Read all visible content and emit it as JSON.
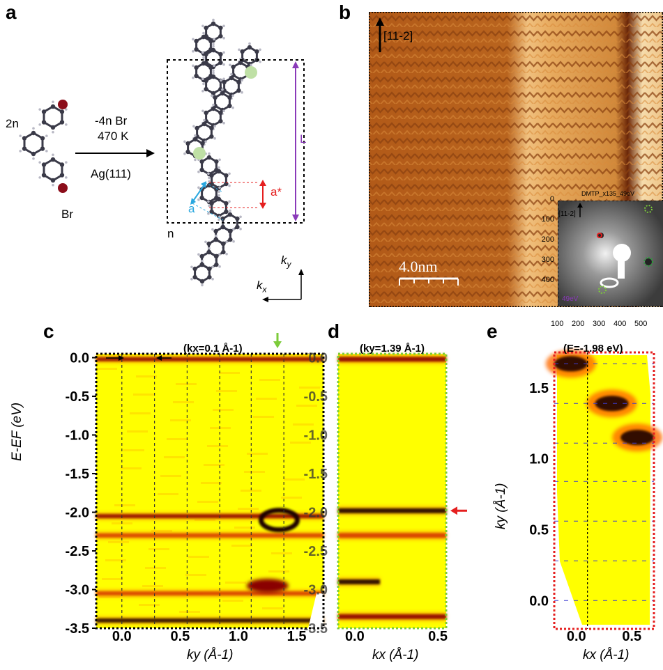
{
  "panels": {
    "a": {
      "letter": "a",
      "mono_count": "2n",
      "reaction_top1": "-4n Br",
      "reaction_top2": "470 K",
      "reaction_bottom": "Ag(111)",
      "br_label": "Br",
      "n_label": "n",
      "L_label": "L",
      "a_star_label": "a*",
      "a_label": "a",
      "ky_label": "k",
      "ky_sub": "y",
      "kx_label": "k",
      "kx_sub": "x"
    },
    "b": {
      "letter": "b",
      "direction": "[11-2]",
      "scale_bar": "4.0nm",
      "inset_title": "DMTP_x135_49eV",
      "inset_direction": "[11-2]",
      "inset_energy": "49eV",
      "inset_y_ticks": [
        "0",
        "100",
        "200",
        "300",
        "400"
      ],
      "inset_x_ticks": [
        "100",
        "200",
        "300",
        "400",
        "500"
      ]
    },
    "c": {
      "letter": "c",
      "title": "(kx=0.1 Å-1)",
      "spacing_label": "2π/L",
      "spacing_label2": "2π/a*",
      "ylabel": "E-EF (eV)",
      "xlabel": "ky (Å-1)"
    },
    "d": {
      "letter": "d",
      "title": "(ky=1.39 Å-1)",
      "xlabel": "kx (Å-1)"
    },
    "e": {
      "letter": "e",
      "title": "(E=-1.98 eV)",
      "ylabel": "ky (Å-1)",
      "xlabel": "kx (Å-1)"
    }
  },
  "colors": {
    "stm_base": "#b8611c",
    "arpes_bg": "#ffff00",
    "panel_c_frame": "#000000",
    "panel_d_frame": "#7ccb3a",
    "panel_e_frame": "#e51f1f",
    "purple": "#8a3ab9",
    "red_arrow": "#e51f1f",
    "cyan": "#29a7df"
  },
  "chart_data": [
    {
      "type": "heatmap",
      "panel": "c",
      "title": "(kx=0.1 Å-1)",
      "xlabel": "ky (Å-1)",
      "ylabel": "E-EF (eV)",
      "x_ticks": [
        "0.0",
        "0.5",
        "1.0",
        "1.5"
      ],
      "y_ticks": [
        "0.0",
        "-0.5",
        "-1.0",
        "-1.5",
        "-2.0",
        "-2.5",
        "-3.0",
        "-3.5"
      ],
      "xlim": [
        -0.22,
        1.73
      ],
      "ylim": [
        -3.5,
        0.05
      ],
      "dashed_lines_ky": [
        0.0,
        0.28,
        0.56,
        0.84,
        1.11,
        1.39
      ],
      "bands": [
        {
          "energy": -0.02,
          "strength": 0.8
        },
        {
          "energy": -2.05,
          "strength": 0.7
        },
        {
          "energy": -2.3,
          "strength": 0.45
        },
        {
          "energy": -3.05,
          "strength": 0.5
        },
        {
          "energy": -3.4,
          "strength": 0.95
        }
      ]
    },
    {
      "type": "heatmap",
      "panel": "d",
      "title": "(ky=1.39 Å-1)",
      "xlabel": "kx (Å-1)",
      "x_ticks": [
        "0.0",
        "0.5"
      ],
      "xlim": [
        -0.1,
        0.55
      ],
      "ylim": [
        -3.5,
        0.05
      ],
      "bands": [
        {
          "energy": -0.02,
          "strength": 0.7
        },
        {
          "energy": -1.98,
          "strength": 0.95
        },
        {
          "energy": -2.3,
          "strength": 0.55
        },
        {
          "energy": -2.9,
          "strength": 0.9
        },
        {
          "energy": -3.35,
          "strength": 0.7
        }
      ]
    },
    {
      "type": "heatmap",
      "panel": "e",
      "title": "(E=-1.98 eV)",
      "xlabel": "kx (Å-1)",
      "ylabel": "ky (Å-1)",
      "x_ticks": [
        "0.0",
        "0.5"
      ],
      "y_ticks": [
        "1.5",
        "1.0",
        "0.5",
        "0.0"
      ],
      "xlim": [
        -0.2,
        0.7
      ],
      "ylim": [
        -0.2,
        1.75
      ],
      "dashed_lines_ky": [
        0.0,
        0.28,
        0.56,
        0.84,
        1.11,
        1.39,
        1.67
      ],
      "spots": [
        {
          "kx": -0.05,
          "ky": 1.67,
          "strength": 1.0
        },
        {
          "kx": 0.32,
          "ky": 1.39,
          "strength": 0.8
        },
        {
          "kx": 0.55,
          "ky": 1.15,
          "strength": 1.0
        }
      ]
    }
  ]
}
